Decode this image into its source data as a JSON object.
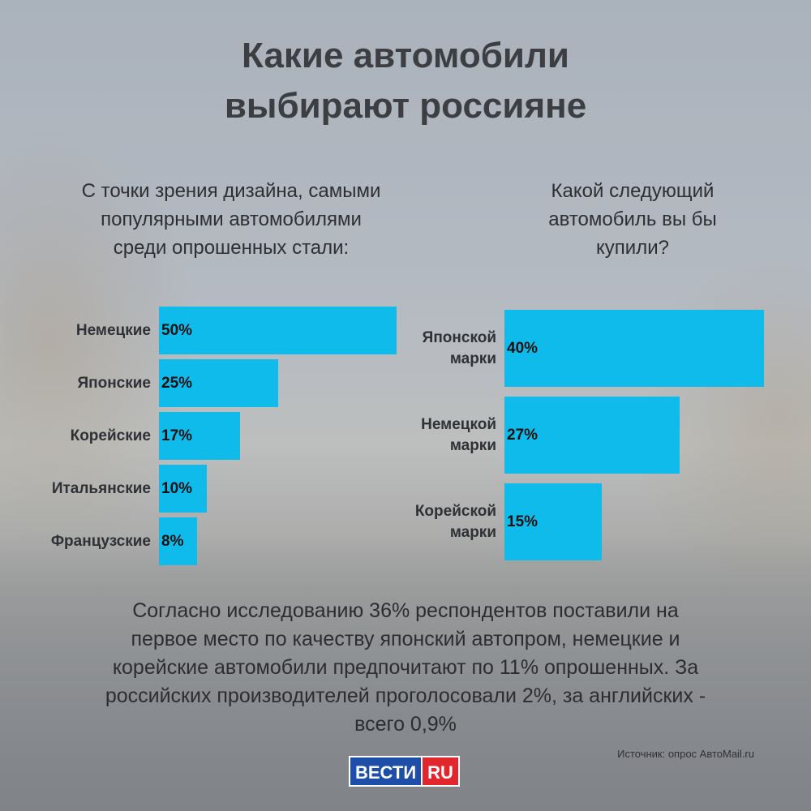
{
  "title": {
    "line1": "Какие автомобили",
    "line2": "выбирают россияне"
  },
  "left": {
    "subtitle": [
      "С точки зрения дизайна, самыми",
      "популярными автомобилями",
      "среди опрошенных стали:"
    ]
  },
  "right": {
    "subtitle": [
      "Какой следующий",
      "автомобиль вы бы",
      "купили?"
    ]
  },
  "chart_data": [
    {
      "type": "bar",
      "orientation": "horizontal",
      "title": "С точки зрения дизайна, самыми популярными автомобилями среди опрошенных стали:",
      "categories": [
        "Немецкие",
        "Японские",
        "Корейские",
        "Итальянские",
        "Французские"
      ],
      "values": [
        50,
        25,
        17,
        10,
        8
      ],
      "labels": [
        "50%",
        "25%",
        "17%",
        "10%",
        "8%"
      ],
      "color": "#0fbbea"
    },
    {
      "type": "bar",
      "orientation": "horizontal",
      "title": "Какой следующий автомобиль вы бы купили?",
      "categories": [
        [
          "Японской",
          "марки"
        ],
        [
          "Немецкой",
          "марки"
        ],
        [
          "Корейской",
          "марки"
        ]
      ],
      "values": [
        40,
        27,
        15
      ],
      "labels": [
        "40%",
        "27%",
        "15%"
      ],
      "color": "#0fbbea"
    }
  ],
  "body": [
    "Согласно исследованию 36% респондентов поставили на",
    "первое место по качеству японский автопром, немецкие и",
    "корейские автомобили предпочитают по 11% опрошенных. За",
    "российских производителей проголосовали 2%, за английских -",
    "всего 0,9%"
  ],
  "source": "Источник: опрос АвтоMail.ru",
  "logo": {
    "part1": "ВЕСТИ",
    "part2": "RU"
  }
}
